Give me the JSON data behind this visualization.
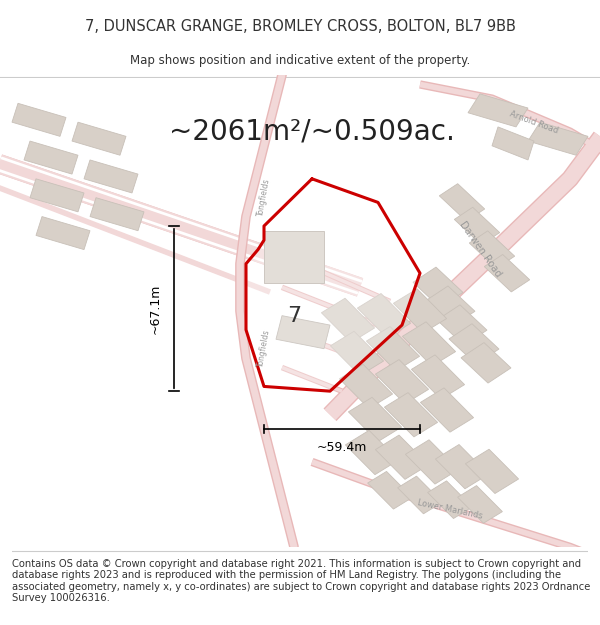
{
  "title": "7, DUNSCAR GRANGE, BROMLEY CROSS, BOLTON, BL7 9BB",
  "subtitle": "Map shows position and indicative extent of the property.",
  "area_text": "~2061m²/~0.509ac.",
  "width_label": "~59.4m",
  "height_label": "~67.1m",
  "property_number": "7",
  "footer_text": "Contains OS data © Crown copyright and database right 2021. This information is subject to Crown copyright and database rights 2023 and is reproduced with the permission of HM Land Registry. The polygons (including the associated geometry, namely x, y co-ordinates) are subject to Crown copyright and database rights 2023 Ordnance Survey 100026316.",
  "map_bg": "#f7f3f0",
  "road_fill": "#f2d8d8",
  "road_outline_color": "#e8b8b8",
  "building_fill": "#d8d0c8",
  "building_edge": "#c8c0b8",
  "property_color": "#cc0000",
  "text_color": "#333333",
  "road_label_color": "#999999",
  "title_fontsize": 10.5,
  "subtitle_fontsize": 8.5,
  "area_fontsize": 20,
  "footer_fontsize": 7.2,
  "dim_fontsize": 9,
  "number_fontsize": 16
}
